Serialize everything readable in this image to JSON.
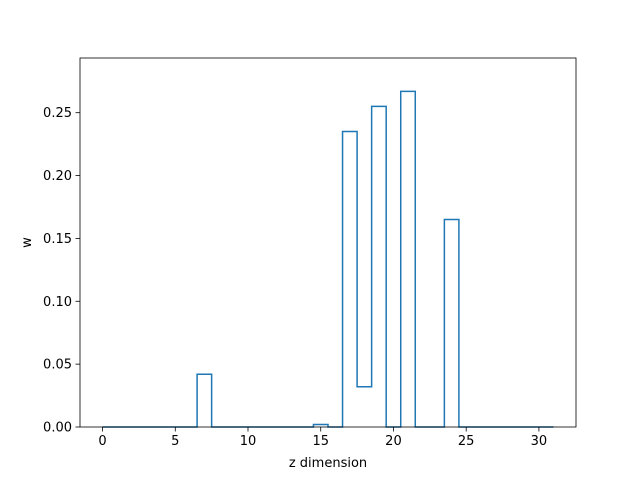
{
  "chart_data": {
    "type": "bar",
    "title": "",
    "xlabel": "z dimension",
    "ylabel": "w",
    "xlim": [
      -1.55,
      32.55
    ],
    "ylim": [
      0,
      0.2935
    ],
    "x_ticks": [
      0,
      5,
      10,
      15,
      20,
      25,
      30
    ],
    "y_ticks": [
      0.0,
      0.05,
      0.1,
      0.15,
      0.2,
      0.25
    ],
    "y_tick_labels": [
      "0.00",
      "0.05",
      "0.10",
      "0.15",
      "0.20",
      "0.25"
    ],
    "x": [
      0,
      1,
      2,
      3,
      4,
      5,
      6,
      7,
      8,
      9,
      10,
      11,
      12,
      13,
      14,
      15,
      16,
      17,
      18,
      19,
      20,
      21,
      22,
      23,
      24,
      25,
      26,
      27,
      28,
      29,
      30,
      31
    ],
    "values": [
      0,
      0,
      0,
      0,
      0,
      0,
      0,
      0.042,
      0,
      0,
      0,
      0,
      0,
      0,
      0,
      0.002,
      0,
      0.235,
      0.032,
      0.255,
      0,
      0.267,
      0,
      0,
      0.165,
      0,
      0,
      0,
      0,
      0,
      0,
      0
    ],
    "color": "#1f77b4",
    "grid": false,
    "legend": "none"
  }
}
